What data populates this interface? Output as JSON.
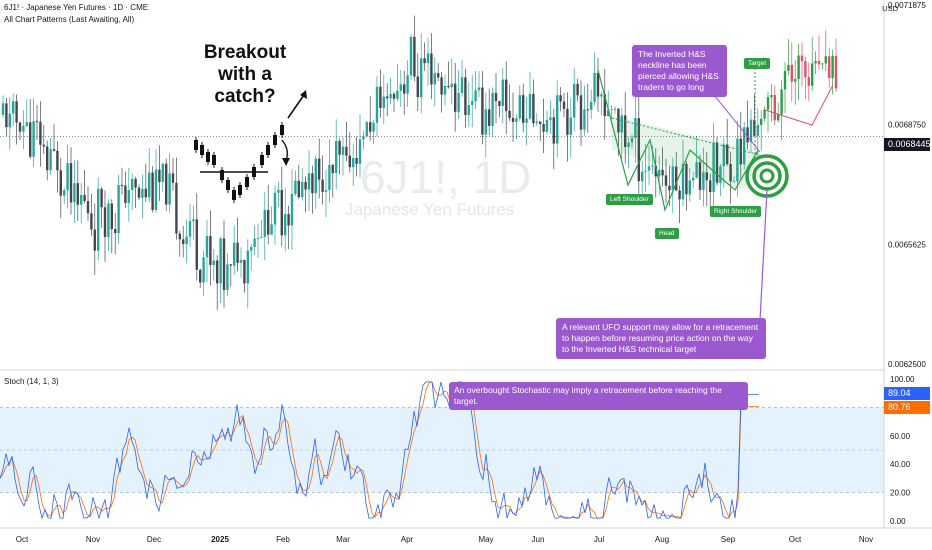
{
  "header": {
    "symbol_line": "6J1! · Japanese Yen Futures · 1D · CME",
    "indicator_line": "All Chart Patterns (Last Awaiting, All)"
  },
  "watermark": {
    "ticker": "6J1!, 1D",
    "name": "Japanese Yen Futures"
  },
  "currency": "USD",
  "price_badge": "0.0068445",
  "annotations": {
    "breakout": [
      "Breakout",
      "with a catch?"
    ],
    "callout_neckline": "The Inverted H&S neckline has been pierced allowing H&S traders to go long",
    "callout_ufo": "A relevant UFO support may allow for a retracement to happen before resuming price action on the way to the Inverted H&S technical target",
    "callout_stoch": "An overbought Stochastic may imply a retracement before reaching the target.",
    "target": "Target",
    "left_shoulder": "Left Shoulder",
    "head": "Head",
    "right_shoulder": "Right Shoulder"
  },
  "stoch": {
    "title": "Stoch (14, 1, 3)",
    "k_value": "89.04",
    "d_value": "80.76"
  },
  "colors": {
    "up": "#26a69a",
    "down": "#434651",
    "k_line": "#2962ff",
    "d_line": "#ff6d00",
    "callout": "#9b59d0",
    "pattern": "#2e9e45",
    "badge": "#131722"
  },
  "chart_data": [
    {
      "type": "candlestick",
      "title": "6J1! · Japanese Yen Futures · 1D · CME",
      "xlabel": "",
      "ylabel": "",
      "x_ticks": [
        "Oct",
        "Nov",
        "Dec",
        "2025",
        "Feb",
        "Mar",
        "Apr",
        "May",
        "Jun",
        "Jul",
        "Aug",
        "Sep",
        "Oct",
        "Nov"
      ],
      "y_ticks": [
        "0.0071875",
        "0.0068750",
        "0.0065625",
        "0.0062500"
      ],
      "ylim": [
        0.00624,
        0.0072
      ],
      "last_price": 0.0068445,
      "anchors": [
        {
          "date": "Oct",
          "close": 0.00688
        },
        {
          "date": "Nov",
          "close": 0.00663
        },
        {
          "date": "Dec",
          "close": 0.00673
        },
        {
          "date": "2025",
          "close": 0.00648
        },
        {
          "date": "Feb",
          "close": 0.00668
        },
        {
          "date": "Mar",
          "close": 0.00676
        },
        {
          "date": "Apr",
          "close": 0.00703
        },
        {
          "date": "May",
          "close": 0.00692
        },
        {
          "date": "Jun",
          "close": 0.00691
        },
        {
          "date": "Jul",
          "close": 0.00694
        },
        {
          "date": "Aug",
          "close": 0.00673
        },
        {
          "date": "Sep",
          "close": 0.00677
        },
        {
          "date": "Oct",
          "close": 0.00702
        }
      ]
    },
    {
      "type": "line",
      "title": "Stoch (14, 1, 3)",
      "y_ticks": [
        "100.00",
        "80.00",
        "60.00",
        "40.00",
        "20.00",
        "0.00"
      ],
      "ylim": [
        -5,
        105
      ],
      "series": [
        {
          "name": "%K",
          "last": 89.04
        },
        {
          "name": "%D",
          "last": 80.76
        }
      ]
    }
  ]
}
